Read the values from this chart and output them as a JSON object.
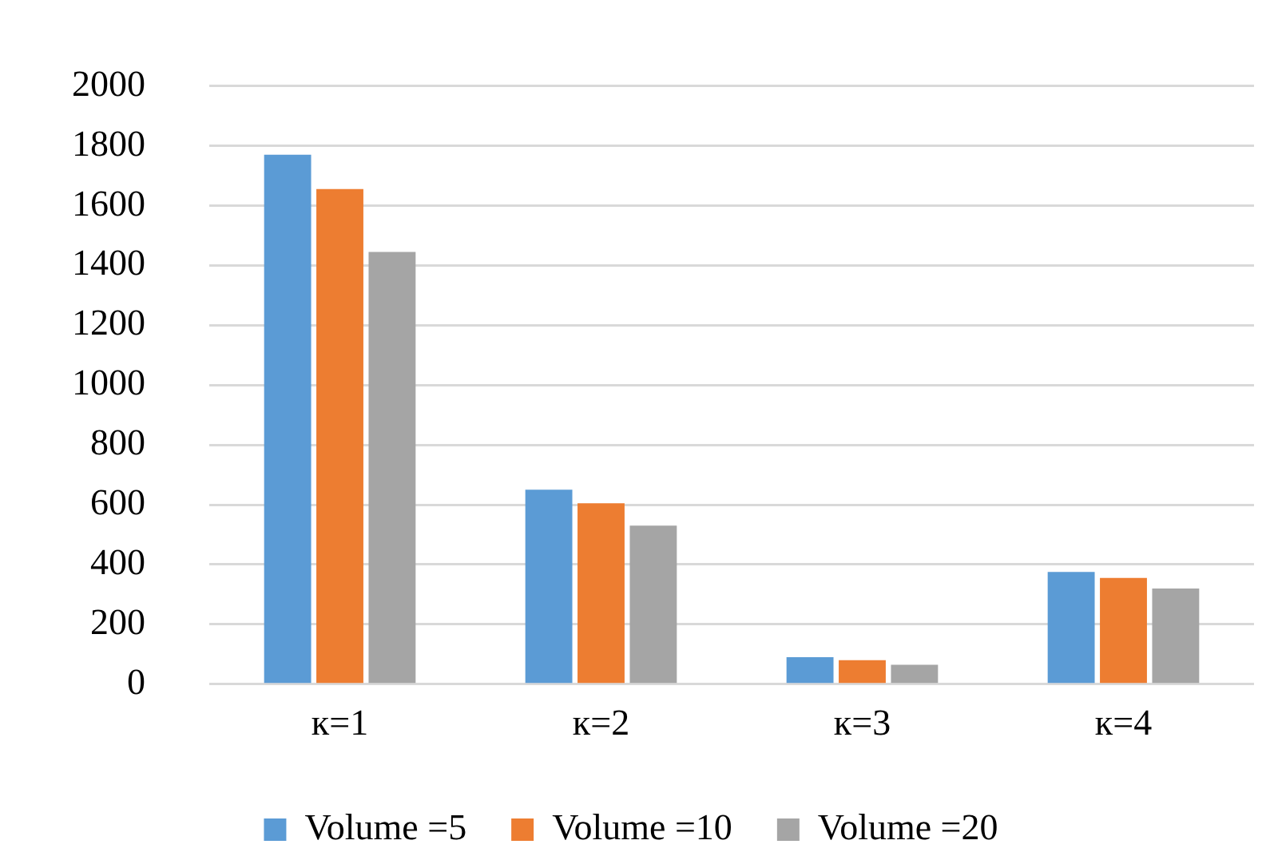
{
  "chart_data": {
    "type": "bar",
    "categories": [
      "к=1",
      "к=2",
      "к=3",
      "к=4"
    ],
    "series": [
      {
        "name": "Volume =5",
        "color": "#5b9bd5",
        "values": [
          1770,
          650,
          90,
          375
        ]
      },
      {
        "name": "Volume =10",
        "color": "#ed7d31",
        "values": [
          1655,
          605,
          80,
          355
        ]
      },
      {
        "name": "Volume =20",
        "color": "#a5a5a5",
        "values": [
          1445,
          530,
          65,
          320
        ]
      }
    ],
    "ylim": [
      0,
      2000
    ],
    "yticks": [
      0,
      200,
      400,
      600,
      800,
      1000,
      1200,
      1400,
      1600,
      1800,
      2000
    ],
    "grid": "y",
    "legend": "bottom"
  }
}
